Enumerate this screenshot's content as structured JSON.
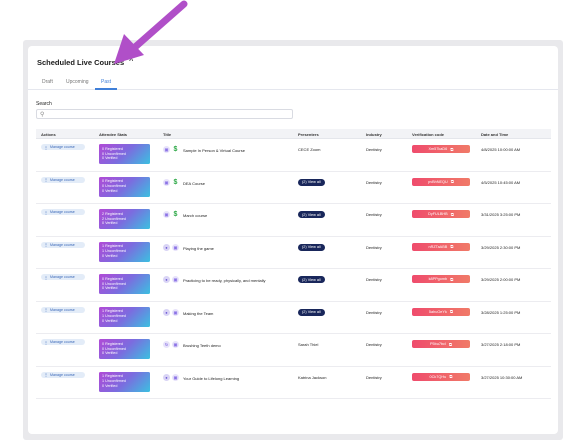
{
  "page": {
    "title": "Scheduled Live Courses",
    "tabs": [
      {
        "label": "Draft",
        "active": false
      },
      {
        "label": "Upcoming",
        "active": false
      },
      {
        "label": "Past",
        "active": true
      }
    ],
    "search_label": "Search",
    "search_placeholder": "",
    "accent_color": "#3f7fd8",
    "arrow_color": "#b04fc8"
  },
  "table": {
    "headers": [
      "Actions",
      "Attendee Stats",
      "Title",
      "Presenters",
      "Industry",
      "Verification code",
      "Date and Time"
    ],
    "rows": [
      {
        "action": "Manage course",
        "stats": [
          "0 Registered",
          "0 Unconfirmed",
          "0 Verified"
        ],
        "icons": [
          "camera-icon",
          "dollar-icon"
        ],
        "title": "Sample In Person & Virtual Course",
        "presenter": "CECE Zoom",
        "presenter_button": "",
        "industry": "Dentistry",
        "code": "Xm57kaD6",
        "date": "4/8/2025 10:00:00 AM"
      },
      {
        "action": "Manage course",
        "stats": [
          "0 Registered",
          "0 Unconfirmed",
          "0 Verified"
        ],
        "icons": [
          "camera-icon",
          "dollar-icon"
        ],
        "title": "DEA Course",
        "presenter": "",
        "presenter_button": "(2) View all",
        "industry": "Dentistry",
        "code": "pvBhNEQU",
        "date": "4/5/2025 10:45:00 AM"
      },
      {
        "action": "Manage course",
        "stats": [
          "2 Registered",
          "2 Unconfirmed",
          "0 Verified"
        ],
        "icons": [
          "camera-icon",
          "dollar-icon"
        ],
        "title": "March course",
        "presenter": "",
        "presenter_button": "(2) View all",
        "industry": "Dentistry",
        "code": "DyFULBHB",
        "date": "3/31/2025 3:25:00 PM"
      },
      {
        "action": "Manage course",
        "stats": [
          "1 Registered",
          "1 Unconfirmed",
          "0 Verified"
        ],
        "icons": [
          "people-icon",
          "camera-icon"
        ],
        "title": "Playing the game",
        "presenter": "",
        "presenter_button": "(2) View all",
        "industry": "Dentistry",
        "code": "nRZTaABB",
        "date": "3/29/2025 2:30:00 PM"
      },
      {
        "action": "Manage course",
        "stats": [
          "0 Registered",
          "0 Unconfirmed",
          "0 Verified"
        ],
        "icons": [
          "people-icon",
          "camera-icon"
        ],
        "title": "Practicing to be ready, physically, and mentally",
        "presenter": "",
        "presenter_button": "(2) View all",
        "industry": "Dentistry",
        "code": "k8PPgomb",
        "date": "3/29/2025 2:00:00 PM"
      },
      {
        "action": "Manage course",
        "stats": [
          "1 Registered",
          "1 Unconfirmed",
          "0 Verified"
        ],
        "icons": [
          "people-icon",
          "camera-icon"
        ],
        "title": "Making the Team",
        "presenter": "",
        "presenter_button": "(2) View all",
        "industry": "Dentistry",
        "code": "5ahuOeYk",
        "date": "3/28/2025 1:25:00 PM"
      },
      {
        "action": "Manage course",
        "stats": [
          "0 Registered",
          "0 Unconfirmed",
          "0 Verified"
        ],
        "icons": [
          "refresh-icon",
          "camera-icon"
        ],
        "title": "Brushing Teeth demo",
        "presenter": "Sarah Thiel",
        "presenter_button": "",
        "industry": "Dentistry",
        "code": "P5bu7bcl",
        "date": "3/27/2025 2:18:00 PM"
      },
      {
        "action": "Manage course",
        "stats": [
          "1 Registered",
          "1 Unconfirmed",
          "0 Verified"
        ],
        "icons": [
          "people-icon",
          "camera-icon"
        ],
        "title": "Your Guide to Lifelong Learning",
        "presenter": "Katrina Jackson",
        "presenter_button": "",
        "industry": "Dentistry",
        "code": "0Ck7QHu",
        "date": "3/27/2025 10:30:00 AM"
      }
    ]
  }
}
